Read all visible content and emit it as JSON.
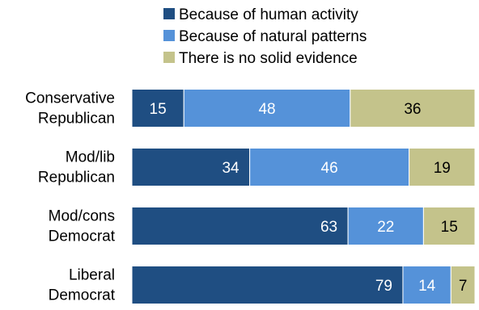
{
  "chart_data": {
    "type": "bar",
    "orientation": "horizontal",
    "stacked": true,
    "categories": [
      [
        "Conservative",
        "Republican"
      ],
      [
        "Mod/lib",
        "Republican"
      ],
      [
        "Mod/cons",
        "Democrat"
      ],
      [
        "Liberal",
        "Democrat"
      ]
    ],
    "series": [
      {
        "name": "Because of human activity",
        "color": "#1f4e82",
        "values": [
          15,
          34,
          63,
          79
        ]
      },
      {
        "name": "Because of natural patterns",
        "color": "#5592d9",
        "values": [
          48,
          46,
          22,
          14
        ]
      },
      {
        "name": "There is no solid evidence",
        "color": "#c4c38b",
        "values": [
          36,
          19,
          15,
          7
        ]
      }
    ],
    "label_colors": [
      "#ffffff",
      "#ffffff",
      "#000000"
    ],
    "xlim": [
      0,
      100
    ],
    "grid": false,
    "legend": "top-center"
  }
}
